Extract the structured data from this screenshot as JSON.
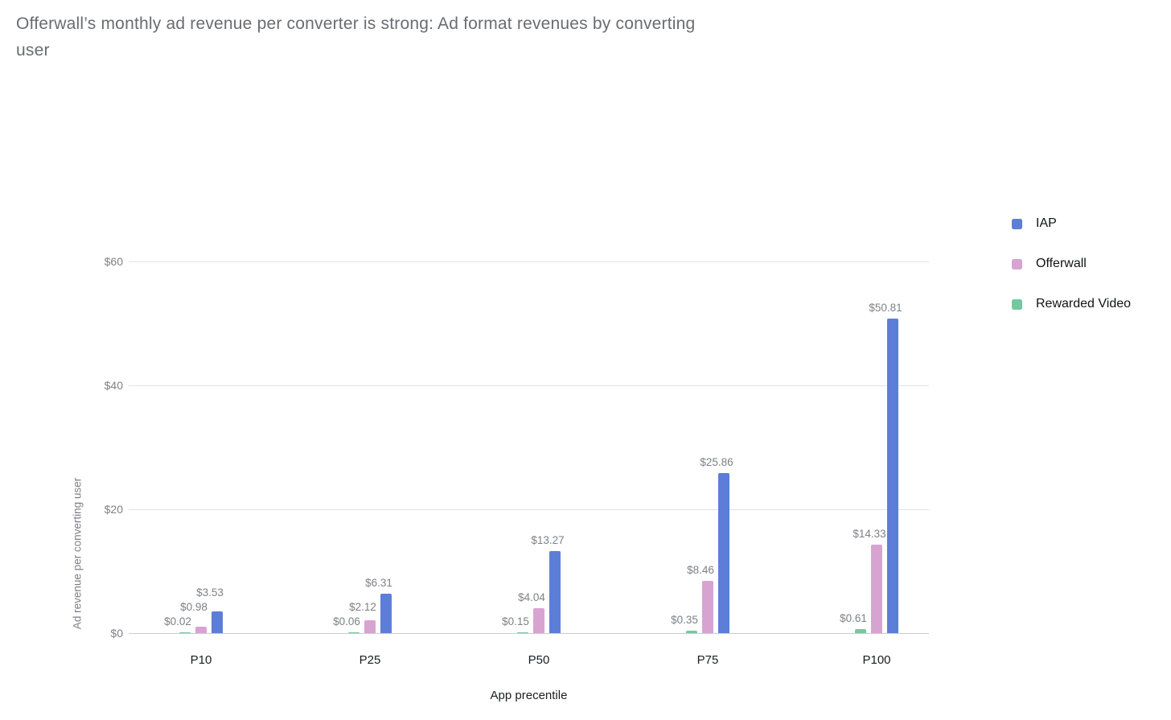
{
  "title": "Offerwall’s monthly ad revenue per converter is strong: Ad format revenues by converting user",
  "chart_data": {
    "type": "bar",
    "title": "Offerwall’s monthly ad revenue per converter is strong: Ad format revenues by converting user",
    "categories": [
      "P10",
      "P25",
      "P50",
      "P75",
      "P100"
    ],
    "series": [
      {
        "name": "IAP",
        "color": "#5C7ED8",
        "values": [
          3.53,
          6.31,
          13.27,
          25.86,
          50.81
        ],
        "labels": [
          "$3.53",
          "$6.31",
          "$13.27",
          "$25.86",
          "$50.81"
        ]
      },
      {
        "name": "Offerwall",
        "color": "#D7A4D2",
        "values": [
          0.98,
          2.12,
          4.04,
          8.46,
          14.33
        ],
        "labels": [
          "$0.98",
          "$2.12",
          "$4.04",
          "$8.46",
          "$14.33"
        ]
      },
      {
        "name": "Rewarded Video",
        "color": "#74C89F",
        "values": [
          0.02,
          0.06,
          0.15,
          0.35,
          0.61
        ],
        "labels": [
          "$0.02",
          "$0.06",
          "$0.15",
          "$0.35",
          "$0.61"
        ]
      }
    ],
    "bar_order_in_group": [
      "Rewarded Video",
      "Offerwall",
      "IAP"
    ],
    "xlabel": "App precentile",
    "ylabel": "Ad revenue per converting user",
    "y_ticks": [
      {
        "label": "$0",
        "value": 0
      },
      {
        "label": "$20",
        "value": 20
      },
      {
        "label": "$40",
        "value": 40
      },
      {
        "label": "$60",
        "value": 60
      }
    ],
    "ylim": [
      0,
      60
    ],
    "grid": true,
    "legend_position": "right",
    "colors": {
      "gridline": "#e1e3e6",
      "baseline": "#c9ccd0",
      "axis_text": "#7d8187",
      "category_text": "#1b1d1f",
      "title_text": "#686d72"
    }
  },
  "legend": {
    "items": [
      {
        "label": "IAP",
        "color": "#5C7ED8"
      },
      {
        "label": "Offerwall",
        "color": "#D7A4D2"
      },
      {
        "label": "Rewarded Video",
        "color": "#74C89F"
      }
    ]
  }
}
